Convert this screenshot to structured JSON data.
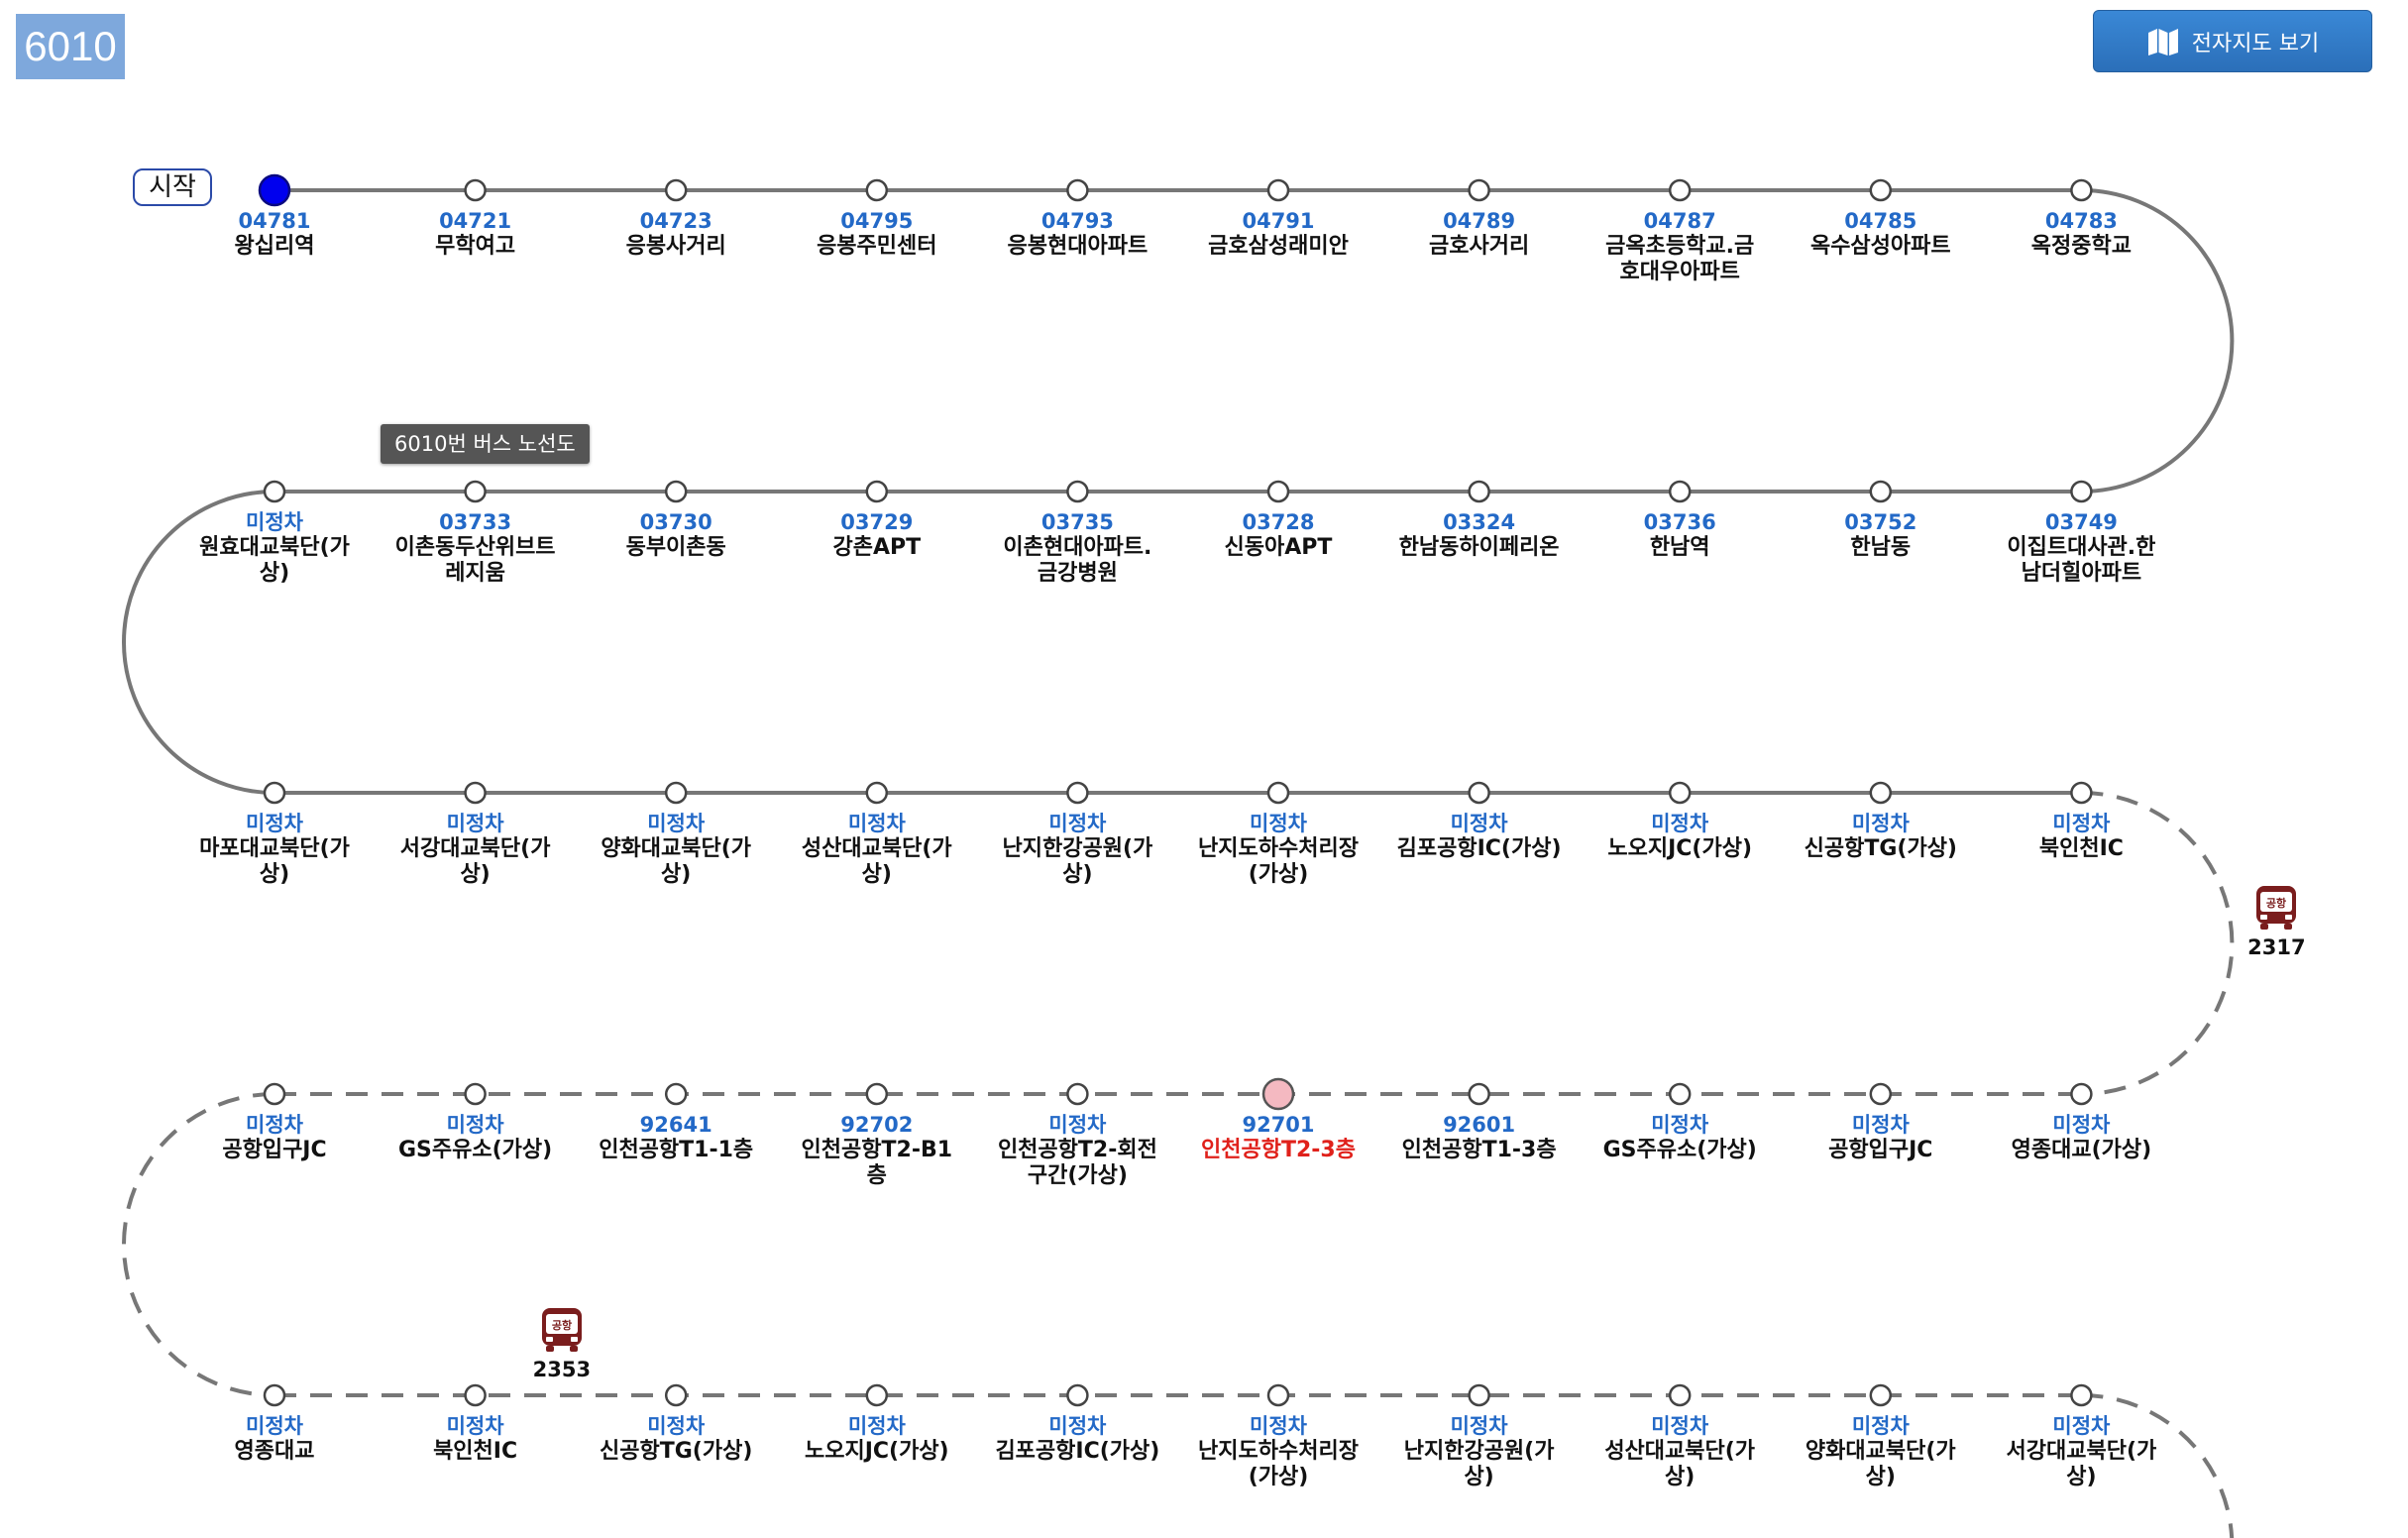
{
  "route": {
    "number": "6010",
    "tooltip": "6010번 버스 노선도",
    "start_label": "시작"
  },
  "toolbar": {
    "map_button_label": "전자지도 보기"
  },
  "colors": {
    "accent": "#2369c7",
    "current_stop": "#e0211b",
    "badge": "#7ea8dc",
    "start_node": "#0000ee",
    "current_node": "#f4b9c1"
  },
  "rows": [
    {
      "solid": true,
      "stops": [
        {
          "id": "04781",
          "name": "왕십리역",
          "state": "start"
        },
        {
          "id": "04721",
          "name": "무학여고"
        },
        {
          "id": "04723",
          "name": "응봉사거리"
        },
        {
          "id": "04795",
          "name": "응봉주민센터"
        },
        {
          "id": "04793",
          "name": "응봉현대아파트"
        },
        {
          "id": "04791",
          "name": "금호삼성래미안"
        },
        {
          "id": "04789",
          "name": "금호사거리"
        },
        {
          "id": "04787",
          "name": "금옥초등학교.금호대우아파트"
        },
        {
          "id": "04785",
          "name": "옥수삼성아파트"
        },
        {
          "id": "04783",
          "name": "옥정중학교"
        }
      ]
    },
    {
      "solid": true,
      "stops": [
        {
          "id": "미정차",
          "name": "원효대교북단(가상)"
        },
        {
          "id": "03733",
          "name": "이촌동두산위브트레지움"
        },
        {
          "id": "03730",
          "name": "동부이촌동"
        },
        {
          "id": "03729",
          "name": "강촌APT"
        },
        {
          "id": "03735",
          "name": "이촌현대아파트.금강병원"
        },
        {
          "id": "03728",
          "name": "신동아APT"
        },
        {
          "id": "03324",
          "name": "한남동하이페리온"
        },
        {
          "id": "03736",
          "name": "한남역"
        },
        {
          "id": "03752",
          "name": "한남동"
        },
        {
          "id": "03749",
          "name": "이집트대사관.한남더힐아파트"
        }
      ]
    },
    {
      "solid": true,
      "stops": [
        {
          "id": "미정차",
          "name": "마포대교북단(가상)"
        },
        {
          "id": "미정차",
          "name": "서강대교북단(가상)"
        },
        {
          "id": "미정차",
          "name": "양화대교북단(가상)"
        },
        {
          "id": "미정차",
          "name": "성산대교북단(가상)"
        },
        {
          "id": "미정차",
          "name": "난지한강공원(가상)"
        },
        {
          "id": "미정차",
          "name": "난지도하수처리장(가상)"
        },
        {
          "id": "미정차",
          "name": "김포공항IC(가상)"
        },
        {
          "id": "미정차",
          "name": "노오지JC(가상)"
        },
        {
          "id": "미정차",
          "name": "신공항TG(가상)"
        },
        {
          "id": "미정차",
          "name": "북인천IC"
        }
      ]
    },
    {
      "solid": false,
      "stops": [
        {
          "id": "미정차",
          "name": "공항입구JC"
        },
        {
          "id": "미정차",
          "name": "GS주유소(가상)"
        },
        {
          "id": "92641",
          "name": "인천공항T1-1층"
        },
        {
          "id": "92702",
          "name": "인천공항T2-B1층"
        },
        {
          "id": "미정차",
          "name": "인천공항T2-회전구간(가상)"
        },
        {
          "id": "92701",
          "name": "인천공항T2-3층",
          "state": "current"
        },
        {
          "id": "92601",
          "name": "인천공항T1-3층"
        },
        {
          "id": "미정차",
          "name": "GS주유소(가상)"
        },
        {
          "id": "미정차",
          "name": "공항입구JC"
        },
        {
          "id": "미정차",
          "name": "영종대교(가상)"
        }
      ]
    },
    {
      "solid": false,
      "stops": [
        {
          "id": "미정차",
          "name": "영종대교"
        },
        {
          "id": "미정차",
          "name": "북인천IC"
        },
        {
          "id": "미정차",
          "name": "신공항TG(가상)"
        },
        {
          "id": "미정차",
          "name": "노오지JC(가상)"
        },
        {
          "id": "미정차",
          "name": "김포공항IC(가상)"
        },
        {
          "id": "미정차",
          "name": "난지도하수처리장(가상)"
        },
        {
          "id": "미정차",
          "name": "난지한강공원(가상)"
        },
        {
          "id": "미정차",
          "name": "성산대교북단(가상)"
        },
        {
          "id": "미정차",
          "name": "양화대교북단(가상)"
        },
        {
          "id": "미정차",
          "name": "서강대교북단(가상)"
        }
      ]
    }
  ],
  "buses": [
    {
      "plate": "2317",
      "badge": "공항",
      "after_row": 2,
      "side": "right"
    },
    {
      "plate": "2353",
      "badge": "공항",
      "after_row": 3,
      "between_stops": [
        1,
        2
      ]
    }
  ]
}
